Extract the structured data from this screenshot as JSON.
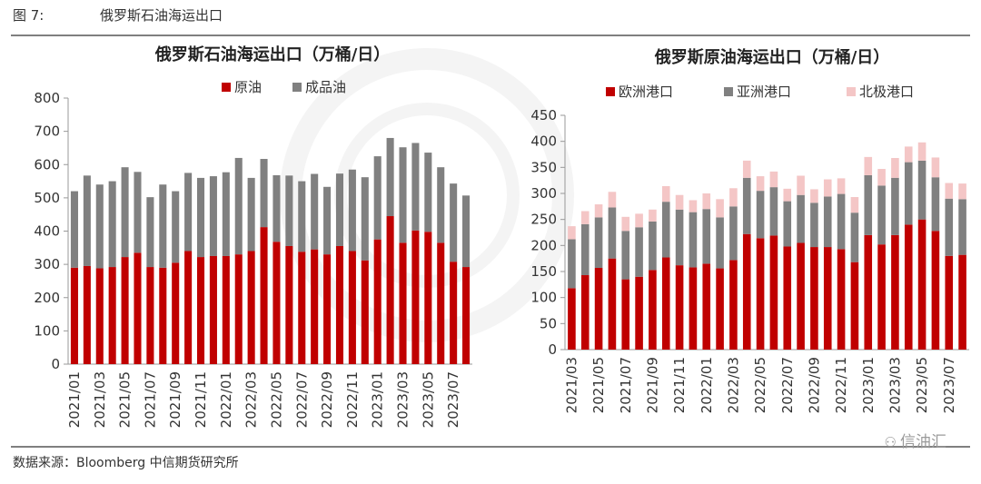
{
  "figure": {
    "label": "图 7:",
    "title": "俄罗斯石油海运出口",
    "source": "数据来源：Bloomberg 中信期货研究所",
    "watermark": "信油汇"
  },
  "colors": {
    "red": "#c00000",
    "gray": "#808080",
    "pink": "#f4c6c6",
    "axis": "#999999"
  },
  "chart_data": [
    {
      "type": "bar",
      "stacked": true,
      "title": "俄罗斯石油海运出口（万桶/日）",
      "ylim": [
        0,
        800
      ],
      "yticks": [
        0,
        100,
        200,
        300,
        400,
        500,
        600,
        700,
        800
      ],
      "categories": [
        "2021/01",
        "2021/02",
        "2021/03",
        "2021/04",
        "2021/05",
        "2021/06",
        "2021/07",
        "2021/08",
        "2021/09",
        "2021/10",
        "2021/11",
        "2021/12",
        "2022/01",
        "2022/02",
        "2022/03",
        "2022/04",
        "2022/05",
        "2022/06",
        "2022/07",
        "2022/08",
        "2022/09",
        "2022/10",
        "2022/11",
        "2022/12",
        "2023/01",
        "2023/02",
        "2023/03",
        "2023/04",
        "2023/05",
        "2023/06",
        "2023/07",
        "2023/08"
      ],
      "tick_labels": [
        "2021/01",
        "2021/03",
        "2021/05",
        "2021/07",
        "2021/09",
        "2021/11",
        "2022/01",
        "2022/03",
        "2022/05",
        "2022/07",
        "2022/09",
        "2022/11",
        "2023/01",
        "2023/03",
        "2023/05",
        "2023/07"
      ],
      "series": [
        {
          "name": "原油",
          "color": "#c00000",
          "values": [
            290,
            295,
            288,
            292,
            322,
            335,
            292,
            290,
            305,
            340,
            322,
            325,
            325,
            330,
            340,
            412,
            368,
            355,
            338,
            345,
            330,
            355,
            340,
            312,
            375,
            445,
            365,
            402,
            398,
            365,
            308,
            292
          ]
        },
        {
          "name": "成品油",
          "color": "#808080",
          "values": [
            230,
            272,
            252,
            258,
            270,
            243,
            210,
            250,
            215,
            235,
            238,
            240,
            252,
            290,
            220,
            205,
            200,
            212,
            212,
            227,
            203,
            218,
            245,
            250,
            250,
            235,
            287,
            263,
            238,
            227,
            235,
            215
          ]
        }
      ]
    },
    {
      "type": "bar",
      "stacked": true,
      "title": "俄罗斯原油海运出口（万桶/日）",
      "ylim": [
        0,
        450
      ],
      "yticks": [
        0,
        50,
        100,
        150,
        200,
        250,
        300,
        350,
        400,
        450
      ],
      "categories": [
        "2021/03",
        "2021/04",
        "2021/05",
        "2021/06",
        "2021/07",
        "2021/08",
        "2021/09",
        "2021/10",
        "2021/11",
        "2021/12",
        "2022/01",
        "2022/02",
        "2022/03",
        "2022/04",
        "2022/05",
        "2022/06",
        "2022/07",
        "2022/08",
        "2022/09",
        "2022/10",
        "2022/11",
        "2022/12",
        "2023/01",
        "2023/02",
        "2023/03",
        "2023/04",
        "2023/05",
        "2023/06",
        "2023/07",
        "2023/08"
      ],
      "tick_labels": [
        "2021/03",
        "2021/05",
        "2021/07",
        "2021/09",
        "2021/11",
        "2022/01",
        "2022/03",
        "2022/05",
        "2022/07",
        "2022/09",
        "2022/11",
        "2023/01",
        "2023/03",
        "2023/05",
        "2023/07"
      ],
      "series": [
        {
          "name": "欧洲港口",
          "color": "#c00000",
          "values": [
            118,
            143,
            157,
            175,
            135,
            140,
            153,
            177,
            162,
            158,
            165,
            156,
            172,
            222,
            214,
            219,
            198,
            205,
            197,
            197,
            193,
            168,
            220,
            202,
            220,
            240,
            250,
            228,
            180,
            182
          ]
        },
        {
          "name": "亚洲港口",
          "color": "#808080",
          "values": [
            94,
            98,
            97,
            98,
            93,
            95,
            93,
            107,
            107,
            106,
            105,
            98,
            103,
            108,
            91,
            93,
            87,
            92,
            85,
            97,
            106,
            95,
            115,
            113,
            110,
            120,
            113,
            103,
            110,
            107
          ]
        },
        {
          "name": "北极港口",
          "color": "#f4c6c6",
          "values": [
            25,
            25,
            25,
            30,
            27,
            26,
            23,
            30,
            28,
            23,
            30,
            35,
            35,
            33,
            28,
            30,
            24,
            37,
            26,
            33,
            30,
            30,
            35,
            32,
            38,
            30,
            35,
            38,
            30,
            30
          ]
        }
      ]
    }
  ]
}
